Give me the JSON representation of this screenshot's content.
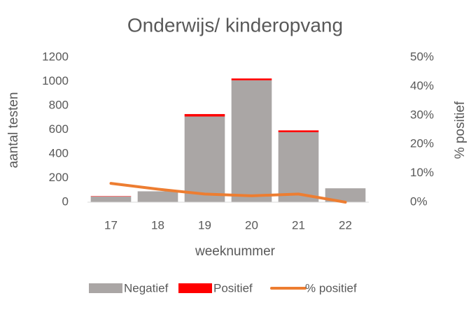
{
  "chart_data": {
    "type": "bar",
    "title": "Onderwijs/ kinderopvang",
    "x_label": "weeknummer",
    "y_label": "aantal testen",
    "y2_label": "% positief",
    "categories": [
      "17",
      "18",
      "19",
      "20",
      "21",
      "22"
    ],
    "series": [
      {
        "name": "Negatief",
        "color": "#aaa6a5",
        "values": [
          47,
          90,
          710,
          1010,
          580,
          115
        ]
      },
      {
        "name": "Positief",
        "color": "#ff0000",
        "values": [
          3,
          0,
          20,
          15,
          15,
          0
        ]
      },
      {
        "name": "% positief",
        "color": "#ed7d31",
        "type": "line",
        "axis": "y2",
        "values": [
          6.5,
          4.5,
          2.8,
          2.2,
          2.8,
          0
        ]
      }
    ],
    "stacked": true,
    "ylim": [
      0,
      1200
    ],
    "yticks": [
      0,
      200,
      400,
      600,
      800,
      1000,
      1200
    ],
    "y2lim": [
      0,
      50
    ],
    "y2ticks": [
      {
        "value": 0,
        "label": "0%"
      },
      {
        "value": 10,
        "label": "10%"
      },
      {
        "value": 20,
        "label": "20%"
      },
      {
        "value": 30,
        "label": "30%"
      },
      {
        "value": 40,
        "label": "40%"
      },
      {
        "value": 50,
        "label": "50%"
      }
    ],
    "legend": "bottom"
  }
}
